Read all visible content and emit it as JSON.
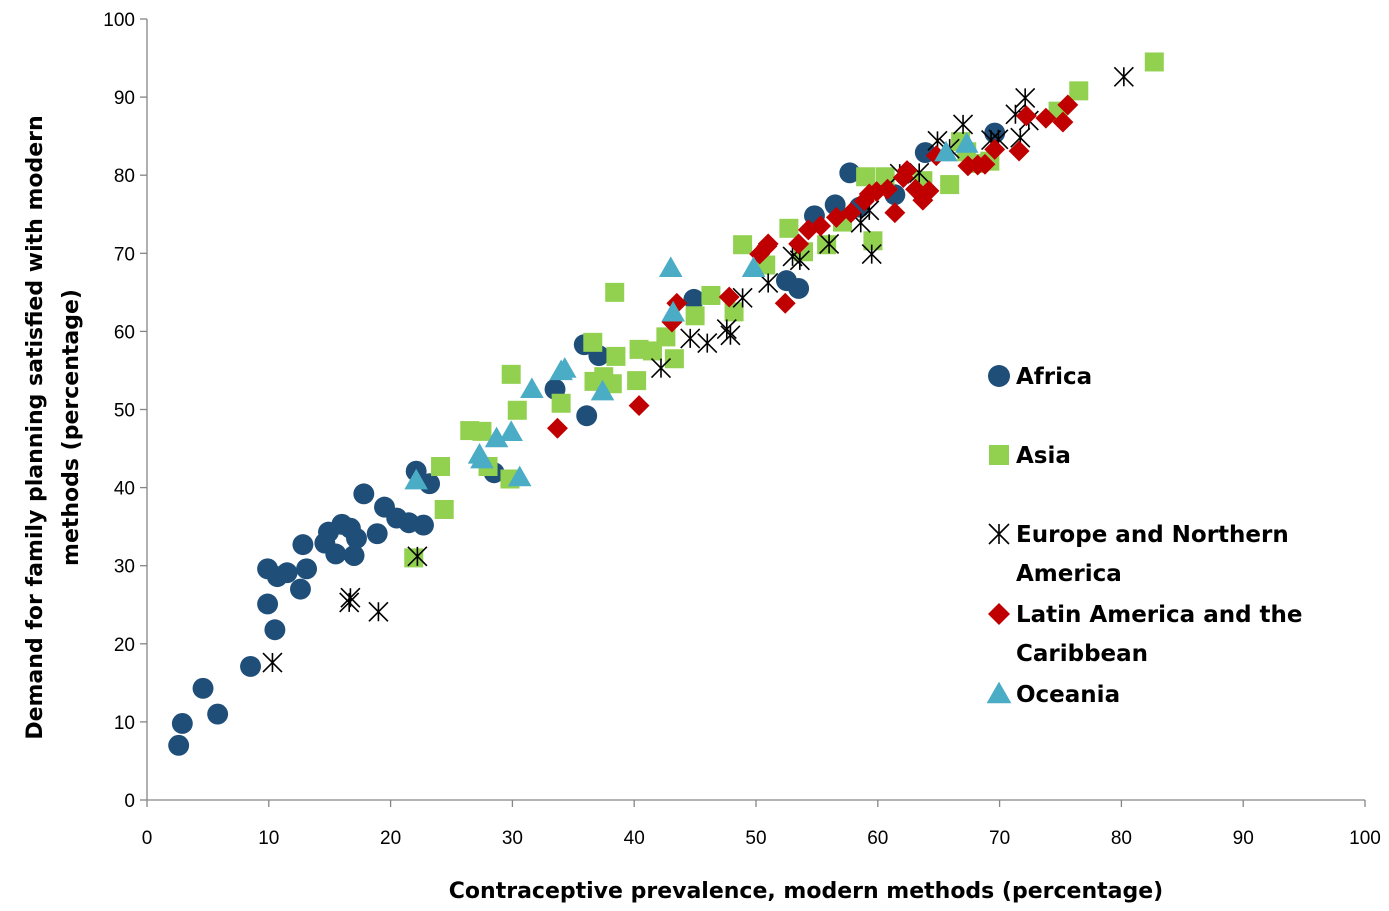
{
  "chart_data": {
    "type": "scatter",
    "title": "",
    "xlabel": "Contraceptive prevalence, modern methods (percentage)",
    "ylabel": "Demand for family planning satisfied with modern methods (percentage)",
    "xlim": [
      0,
      100
    ],
    "ylim": [
      0,
      100
    ],
    "xticks": [
      0,
      10,
      20,
      30,
      40,
      50,
      60,
      70,
      80,
      90,
      100
    ],
    "yticks": [
      0,
      10,
      20,
      30,
      40,
      50,
      60,
      70,
      80,
      90,
      100
    ],
    "grid": false,
    "legend_position": "right",
    "series": [
      {
        "name": "Africa",
        "marker": "circle",
        "color": "#1f4e79",
        "points": [
          [
            2.6,
            7.0
          ],
          [
            2.9,
            9.8
          ],
          [
            4.6,
            14.3
          ],
          [
            5.8,
            11.0
          ],
          [
            8.5,
            17.1
          ],
          [
            9.9,
            29.6
          ],
          [
            9.9,
            25.1
          ],
          [
            10.5,
            21.8
          ],
          [
            10.7,
            28.6
          ],
          [
            11.5,
            29.1
          ],
          [
            12.6,
            27.0
          ],
          [
            12.8,
            32.7
          ],
          [
            13.1,
            29.6
          ],
          [
            14.6,
            32.9
          ],
          [
            14.9,
            34.3
          ],
          [
            15.5,
            31.5
          ],
          [
            16.0,
            35.3
          ],
          [
            16.7,
            34.8
          ],
          [
            17.0,
            31.3
          ],
          [
            17.2,
            33.5
          ],
          [
            17.8,
            39.2
          ],
          [
            18.9,
            34.1
          ],
          [
            19.5,
            37.5
          ],
          [
            20.5,
            36.1
          ],
          [
            21.5,
            35.5
          ],
          [
            22.1,
            42.1
          ],
          [
            22.7,
            35.2
          ],
          [
            23.2,
            40.5
          ],
          [
            28.5,
            41.9
          ],
          [
            33.5,
            52.6
          ],
          [
            35.9,
            58.3
          ],
          [
            36.1,
            49.2
          ],
          [
            37.1,
            56.9
          ],
          [
            44.9,
            64.1
          ],
          [
            52.5,
            66.5
          ],
          [
            53.5,
            65.5
          ],
          [
            54.8,
            74.8
          ],
          [
            56.5,
            76.2
          ],
          [
            57.7,
            80.3
          ],
          [
            58.5,
            75.9
          ],
          [
            61.4,
            77.5
          ],
          [
            63.9,
            82.9
          ],
          [
            69.6,
            85.4
          ]
        ]
      },
      {
        "name": "Asia",
        "marker": "square",
        "color": "#92d050",
        "points": [
          [
            21.9,
            31.0
          ],
          [
            24.1,
            42.7
          ],
          [
            24.4,
            37.2
          ],
          [
            26.5,
            47.3
          ],
          [
            27.5,
            47.2
          ],
          [
            28.0,
            42.7
          ],
          [
            29.8,
            41.1
          ],
          [
            29.9,
            54.5
          ],
          [
            30.4,
            49.9
          ],
          [
            34.0,
            50.8
          ],
          [
            36.6,
            58.6
          ],
          [
            36.7,
            53.6
          ],
          [
            37.5,
            54.2
          ],
          [
            38.2,
            53.3
          ],
          [
            38.4,
            65.0
          ],
          [
            38.5,
            56.8
          ],
          [
            40.2,
            53.7
          ],
          [
            40.4,
            57.7
          ],
          [
            41.5,
            57.5
          ],
          [
            42.6,
            59.3
          ],
          [
            43.3,
            56.5
          ],
          [
            45.0,
            62.0
          ],
          [
            46.3,
            64.6
          ],
          [
            48.2,
            62.5
          ],
          [
            48.9,
            71.1
          ],
          [
            50.8,
            68.5
          ],
          [
            52.7,
            73.2
          ],
          [
            53.9,
            70.2
          ],
          [
            55.8,
            71.1
          ],
          [
            57.1,
            74.0
          ],
          [
            59.0,
            79.8
          ],
          [
            59.6,
            71.6
          ],
          [
            60.6,
            79.8
          ],
          [
            63.7,
            79.3
          ],
          [
            65.9,
            78.8
          ],
          [
            66.8,
            84.3
          ],
          [
            67.3,
            83.0
          ],
          [
            68.1,
            81.5
          ],
          [
            69.2,
            81.8
          ],
          [
            74.8,
            88.2
          ],
          [
            76.5,
            90.8
          ],
          [
            82.7,
            94.5
          ]
        ]
      },
      {
        "name": "Europe and Northern America",
        "marker": "asterisk",
        "color": "#000000",
        "points": [
          [
            10.3,
            17.6
          ],
          [
            16.6,
            25.3
          ],
          [
            16.7,
            25.9
          ],
          [
            19.0,
            24.1
          ],
          [
            22.2,
            31.2
          ],
          [
            42.2,
            55.3
          ],
          [
            44.6,
            59.1
          ],
          [
            46.0,
            58.5
          ],
          [
            47.6,
            60.3
          ],
          [
            47.9,
            59.5
          ],
          [
            48.9,
            64.3
          ],
          [
            51.0,
            66.2
          ],
          [
            53.0,
            69.6
          ],
          [
            53.6,
            69.1
          ],
          [
            56.0,
            71.2
          ],
          [
            58.6,
            73.9
          ],
          [
            59.3,
            75.5
          ],
          [
            59.5,
            69.9
          ],
          [
            61.8,
            80.2
          ],
          [
            63.4,
            80.3
          ],
          [
            64.9,
            84.4
          ],
          [
            65.9,
            83.4
          ],
          [
            67.0,
            86.5
          ],
          [
            69.3,
            84.5
          ],
          [
            69.9,
            84.6
          ],
          [
            71.3,
            87.8
          ],
          [
            71.7,
            84.8
          ],
          [
            72.1,
            89.9
          ],
          [
            72.4,
            87.0
          ],
          [
            80.2,
            92.6
          ]
        ]
      },
      {
        "name": "Latin America and the Caribbean",
        "marker": "diamond",
        "color": "#c00000",
        "points": [
          [
            33.7,
            47.6
          ],
          [
            40.4,
            50.5
          ],
          [
            43.1,
            61.2
          ],
          [
            43.5,
            63.6
          ],
          [
            47.8,
            64.4
          ],
          [
            50.3,
            69.9
          ],
          [
            50.9,
            70.9
          ],
          [
            51.0,
            71.2
          ],
          [
            52.4,
            63.6
          ],
          [
            53.5,
            71.2
          ],
          [
            54.3,
            73.0
          ],
          [
            55.3,
            73.5
          ],
          [
            56.6,
            74.6
          ],
          [
            57.8,
            75.2
          ],
          [
            58.9,
            76.7
          ],
          [
            59.3,
            77.6
          ],
          [
            59.9,
            77.9
          ],
          [
            60.8,
            78.2
          ],
          [
            61.4,
            75.2
          ],
          [
            62.1,
            79.7
          ],
          [
            62.4,
            80.6
          ],
          [
            63.1,
            78.2
          ],
          [
            63.7,
            76.8
          ],
          [
            64.2,
            78.0
          ],
          [
            64.8,
            82.5
          ],
          [
            67.4,
            81.2
          ],
          [
            68.2,
            81.3
          ],
          [
            68.8,
            81.4
          ],
          [
            69.6,
            83.3
          ],
          [
            71.6,
            83.1
          ],
          [
            72.2,
            87.6
          ],
          [
            73.8,
            87.3
          ],
          [
            75.2,
            86.8
          ],
          [
            75.6,
            89.0
          ]
        ]
      },
      {
        "name": "Oceania",
        "marker": "triangle",
        "color": "#4bacc6",
        "points": [
          [
            22.1,
            40.9
          ],
          [
            27.3,
            44.2
          ],
          [
            27.5,
            43.6
          ],
          [
            28.7,
            46.3
          ],
          [
            29.9,
            47.1
          ],
          [
            30.6,
            41.3
          ],
          [
            31.6,
            52.6
          ],
          [
            34.0,
            54.9
          ],
          [
            34.3,
            55.2
          ],
          [
            37.4,
            52.3
          ],
          [
            43.0,
            68.1
          ],
          [
            43.2,
            62.4
          ],
          [
            49.8,
            68.1
          ],
          [
            65.6,
            82.9
          ],
          [
            67.3,
            84.0
          ]
        ]
      }
    ]
  }
}
